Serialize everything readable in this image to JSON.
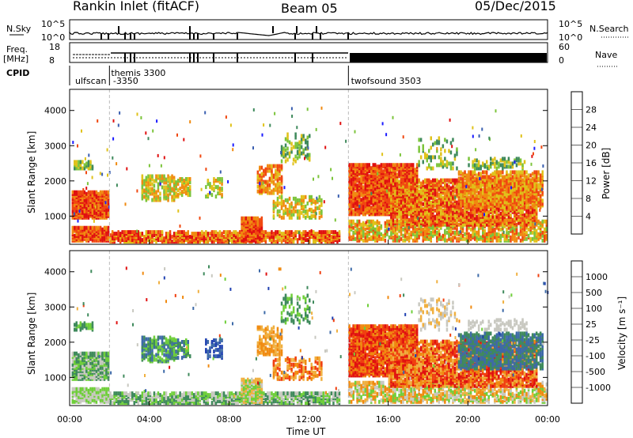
{
  "header": {
    "radar": "Rankin Inlet (fitACF)",
    "beam": "Beam 05",
    "date": "05/Dec/2015"
  },
  "panels": {
    "nsky_label": "N.Sky",
    "nsky_ticks": [
      "10^5",
      "10^0"
    ],
    "nsearch_label": "N.Search",
    "nsearch_ticks": [
      "10^5",
      "10^0"
    ],
    "freq_label_1": "Freq.",
    "freq_label_2": "[MHz]",
    "freq_ticks": [
      "18",
      "8"
    ],
    "nave_label": "Nave",
    "nave_ticks": [
      "60",
      "0"
    ],
    "cpid_label": "CPID",
    "cpid_entries": [
      {
        "text": "ulfscan",
        "hour": 0.2
      },
      {
        "text": "themis 3300",
        "hour": 2.0
      },
      {
        "text": "-3350",
        "hour": 2.1
      },
      {
        "text": "twofsound 3503",
        "hour": 14.05
      }
    ],
    "cpid_boundaries": [
      2.0,
      14.0
    ]
  },
  "chart_data": [
    {
      "type": "heatmap",
      "name": "power",
      "ylabel": "Slant Range [km]",
      "yticks": [
        1000,
        2000,
        3000,
        4000
      ],
      "ylim": [
        200,
        4600
      ],
      "xlim": [
        0,
        24
      ],
      "colorbar_label": "Power [dB]",
      "colorbar_ticks": [
        "28",
        "24",
        "20",
        "16",
        "12",
        "8",
        "4"
      ],
      "colorbar_colors": [
        "#1a1aff",
        "#3a5fb0",
        "#3f8a5c",
        "#7cc43b",
        "#e0c21a",
        "#f08a10",
        "#f04810",
        "#e01010"
      ]
    },
    {
      "type": "heatmap",
      "name": "velocity",
      "ylabel": "Slant Range [km]",
      "yticks": [
        1000,
        2000,
        3000,
        4000
      ],
      "ylim": [
        200,
        4600
      ],
      "xlim": [
        0,
        24
      ],
      "xlabel": "Time UT",
      "xticks": [
        "00:00",
        "04:00",
        "08:00",
        "12:00",
        "16:00",
        "20:00",
        "00:00"
      ],
      "colorbar_label": "Velocity [m s⁻¹]",
      "colorbar_ticks": [
        "1000",
        "500",
        "100",
        "25",
        "-25",
        "-100",
        "-500",
        "-1000"
      ],
      "colorbar_colors": [
        "#1e3fb0",
        "#3d6aa8",
        "#3f8a5c",
        "#6fcf3a",
        "#c8c8c0",
        "#f0b040",
        "#f08a10",
        "#f04010",
        "#e01010"
      ]
    }
  ]
}
